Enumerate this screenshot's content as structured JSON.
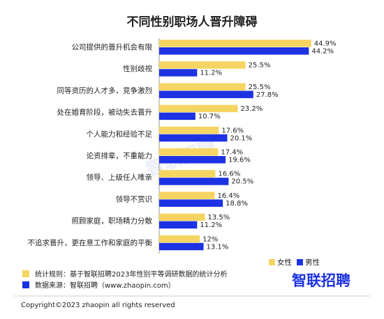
{
  "chart_data": {
    "type": "bar",
    "orientation": "horizontal",
    "title": "不同性别职场人晋升障碍",
    "categories": [
      "公司提供的晋升机会有限",
      "性别歧视",
      "同等资历的人才多，竞争激烈",
      "处在婚育阶段，被动失去晋升",
      "个人能力和经验不足",
      "论资排辈，不重能力",
      "领导、上级任人唯亲",
      "领导不赏识",
      "照顾家庭，职场精力分散",
      "不追求晋升，更在意工作和家庭的平衡"
    ],
    "series": [
      {
        "name": "女性",
        "color": "#f6d462",
        "values": [
          44.9,
          25.5,
          25.5,
          23.2,
          17.6,
          17.4,
          16.6,
          16.4,
          13.5,
          12
        ],
        "value_labels": [
          "44.9%",
          "25.5%",
          "25.5%",
          "23.2%",
          "17.6%",
          "17.4%",
          "16.6%",
          "16.4%",
          "13.5%",
          "12%"
        ]
      },
      {
        "name": "男性",
        "color": "#1c32e3",
        "values": [
          44.2,
          11.2,
          27.8,
          10.7,
          20.1,
          19.6,
          20.5,
          18.8,
          11.2,
          13.1
        ],
        "value_labels": [
          "44.2%",
          "11.2%",
          "27.8%",
          "10.7%",
          "20.1%",
          "19.6%",
          "20.5%",
          "18.8%",
          "11.2%",
          "13.1%"
        ]
      }
    ],
    "legend": "bottom-right"
  },
  "watermark": "智联招聘",
  "notes": [
    "统计规则：基于智联招聘2023年性别平等调研数据的统计分析",
    "数据来源：智联招聘（www.zhaopin.com）"
  ],
  "logo": "智联招聘",
  "copyright": "Copyright©2023 zhaopin all rights reserved"
}
